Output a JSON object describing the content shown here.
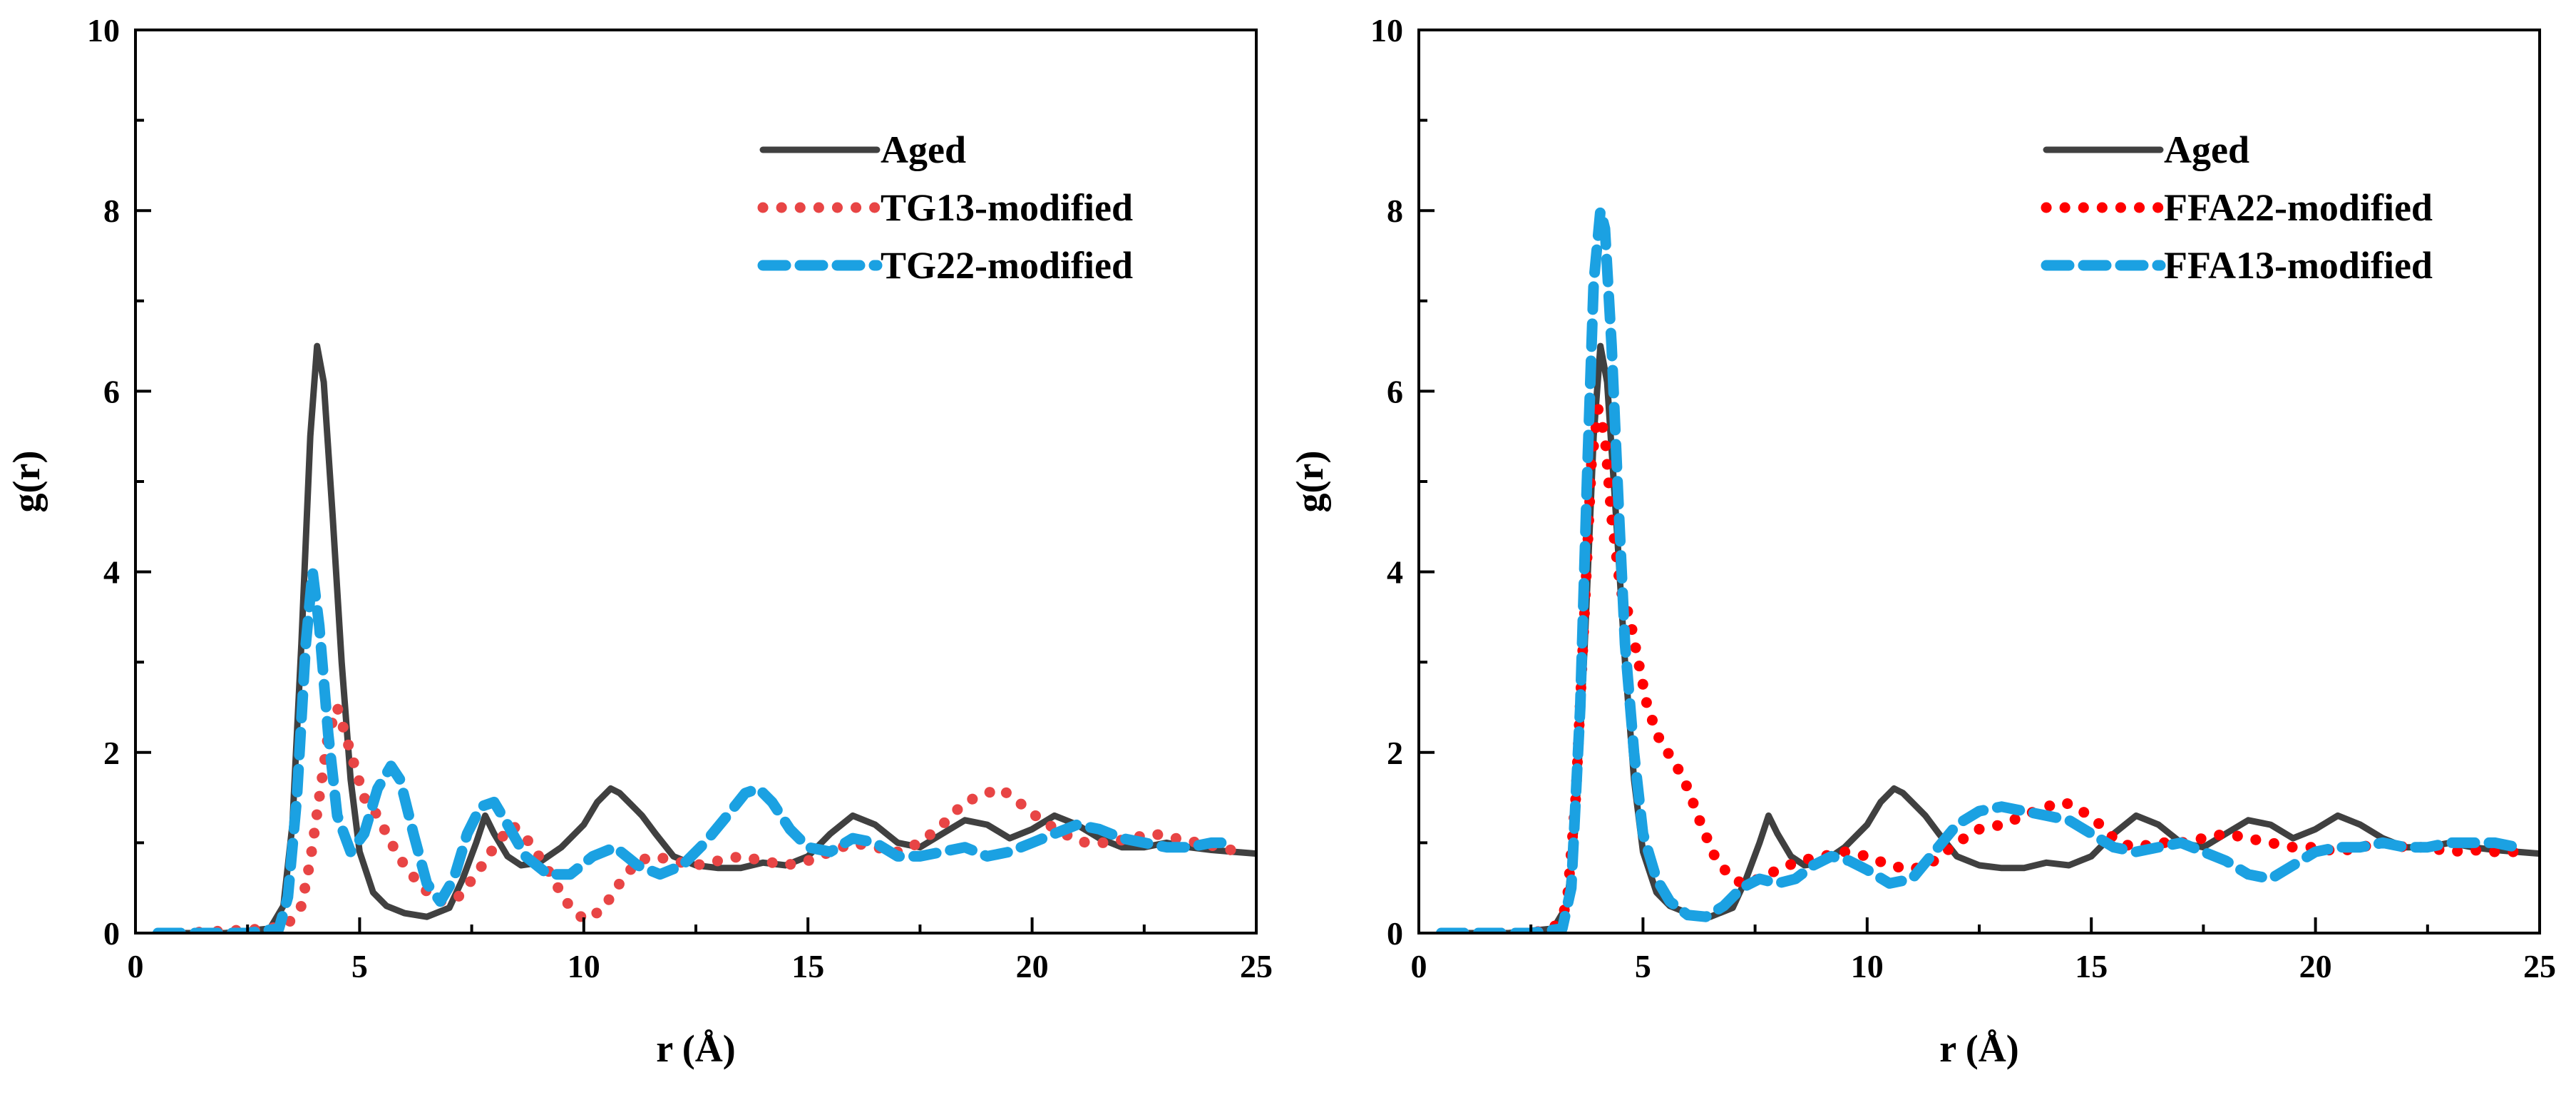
{
  "chart_data": [
    {
      "type": "line",
      "title": "",
      "xlabel": "r (Å)",
      "ylabel": "g(r)",
      "xlim": [
        0,
        25
      ],
      "ylim": [
        0,
        10
      ],
      "xticks": [
        0,
        5,
        10,
        15,
        20,
        25
      ],
      "yticks": [
        0,
        2,
        4,
        6,
        8,
        10
      ],
      "grid": false,
      "legend_position": "top-right",
      "series": [
        {
          "name": "Aged",
          "style": "solid",
          "color": "#404040",
          "x": [
            0.5,
            2.0,
            3.0,
            3.3,
            3.5,
            3.7,
            3.9,
            4.05,
            4.2,
            4.4,
            4.6,
            4.8,
            5.0,
            5.3,
            5.6,
            6.0,
            6.5,
            7.0,
            7.3,
            7.6,
            7.8,
            8.0,
            8.3,
            8.6,
            9.0,
            9.5,
            10.0,
            10.3,
            10.6,
            10.8,
            11.0,
            11.3,
            11.6,
            12.0,
            12.5,
            13.0,
            13.5,
            14.0,
            14.5,
            15.0,
            15.5,
            16.0,
            16.5,
            17.0,
            17.5,
            18.0,
            18.5,
            19.0,
            19.5,
            20.0,
            20.5,
            21.0,
            21.5,
            22.0,
            22.5,
            23.0,
            23.5,
            24.0,
            24.5,
            25.0
          ],
          "y": [
            0,
            0,
            0.05,
            0.3,
            1.2,
            3.2,
            5.5,
            6.5,
            6.1,
            4.6,
            3.0,
            1.7,
            0.9,
            0.45,
            0.3,
            0.22,
            0.18,
            0.28,
            0.6,
            1.0,
            1.3,
            1.1,
            0.85,
            0.75,
            0.78,
            0.95,
            1.2,
            1.45,
            1.6,
            1.55,
            1.45,
            1.3,
            1.1,
            0.85,
            0.75,
            0.72,
            0.72,
            0.78,
            0.75,
            0.85,
            1.1,
            1.3,
            1.2,
            1.0,
            0.95,
            1.1,
            1.25,
            1.2,
            1.05,
            1.15,
            1.3,
            1.2,
            1.05,
            0.95,
            0.95,
            1.0,
            0.95,
            0.92,
            0.9,
            0.88
          ]
        },
        {
          "name": "TG13-modified",
          "style": "dotted",
          "color": "#E84545",
          "x": [
            1.0,
            3.0,
            3.4,
            3.7,
            3.9,
            4.1,
            4.3,
            4.5,
            4.8,
            5.1,
            5.4,
            5.7,
            6.0,
            6.4,
            6.8,
            7.2,
            7.6,
            8.0,
            8.4,
            8.8,
            9.2,
            9.6,
            10.0,
            10.4,
            10.8,
            11.2,
            11.6,
            12.0,
            12.5,
            13.0,
            13.5,
            14.0,
            14.5,
            15.0,
            15.5,
            16.0,
            16.5,
            17.0,
            17.5,
            18.0,
            18.5,
            19.0,
            19.3,
            19.7,
            20.2,
            20.7,
            21.2,
            21.7,
            22.2,
            22.7,
            23.2,
            23.7,
            24.2,
            24.6
          ],
          "y": [
            0,
            0.05,
            0.1,
            0.3,
            0.8,
            1.5,
            2.2,
            2.5,
            2.0,
            1.5,
            1.3,
            1.0,
            0.75,
            0.5,
            0.35,
            0.4,
            0.65,
            0.95,
            1.2,
            1.0,
            0.7,
            0.35,
            0.15,
            0.25,
            0.55,
            0.8,
            0.85,
            0.8,
            0.75,
            0.8,
            0.85,
            0.8,
            0.75,
            0.8,
            0.9,
            1.0,
            0.95,
            0.9,
            1.0,
            1.2,
            1.45,
            1.55,
            1.6,
            1.45,
            1.25,
            1.1,
            1.0,
            1.0,
            1.05,
            1.1,
            1.05,
            1.0,
            0.95,
            0.9
          ]
        },
        {
          "name": "TG22-modified",
          "style": "dashed",
          "color": "#1BA1E2",
          "x": [
            0.5,
            2.5,
            3.2,
            3.4,
            3.6,
            3.8,
            3.95,
            4.1,
            4.3,
            4.5,
            4.8,
            5.1,
            5.4,
            5.7,
            5.9,
            6.2,
            6.5,
            6.8,
            7.1,
            7.4,
            7.7,
            8.0,
            8.3,
            8.7,
            9.2,
            9.7,
            10.2,
            10.7,
            11.2,
            11.7,
            12.2,
            12.7,
            13.2,
            13.6,
            13.9,
            14.2,
            14.6,
            15.0,
            15.5,
            16.0,
            16.5,
            17.0,
            17.5,
            18.0,
            18.5,
            19.0,
            19.5,
            20.0,
            20.5,
            21.0,
            21.5,
            22.0,
            22.5,
            23.0,
            23.5,
            24.0,
            24.5
          ],
          "y": [
            0,
            0,
            0.05,
            0.4,
            1.5,
            3.2,
            4.0,
            3.4,
            2.2,
            1.3,
            0.9,
            1.1,
            1.6,
            1.85,
            1.7,
            1.1,
            0.55,
            0.35,
            0.6,
            1.1,
            1.4,
            1.45,
            1.2,
            0.85,
            0.65,
            0.65,
            0.85,
            0.95,
            0.75,
            0.65,
            0.75,
            1.0,
            1.3,
            1.55,
            1.6,
            1.45,
            1.15,
            0.95,
            0.9,
            1.05,
            1.0,
            0.85,
            0.85,
            0.9,
            0.95,
            0.85,
            0.9,
            1.0,
            1.1,
            1.2,
            1.15,
            1.05,
            1.0,
            0.95,
            0.95,
            1.0,
            1.0
          ]
        }
      ]
    },
    {
      "type": "line",
      "title": "",
      "xlabel": "r (Å)",
      "ylabel": "g(r)",
      "xlim": [
        0,
        25
      ],
      "ylim": [
        0,
        10
      ],
      "xticks": [
        0,
        5,
        10,
        15,
        20,
        25
      ],
      "yticks": [
        0,
        2,
        4,
        6,
        8,
        10
      ],
      "grid": false,
      "legend_position": "top-right",
      "series": [
        {
          "name": "Aged",
          "style": "solid",
          "color": "#404040",
          "x": [
            0.5,
            2.0,
            3.0,
            3.3,
            3.5,
            3.7,
            3.9,
            4.05,
            4.2,
            4.4,
            4.6,
            4.8,
            5.0,
            5.3,
            5.6,
            6.0,
            6.5,
            7.0,
            7.3,
            7.6,
            7.8,
            8.0,
            8.3,
            8.6,
            9.0,
            9.5,
            10.0,
            10.3,
            10.6,
            10.8,
            11.0,
            11.3,
            11.6,
            12.0,
            12.5,
            13.0,
            13.5,
            14.0,
            14.5,
            15.0,
            15.5,
            16.0,
            16.5,
            17.0,
            17.5,
            18.0,
            18.5,
            19.0,
            19.5,
            20.0,
            20.5,
            21.0,
            21.5,
            22.0,
            22.5,
            23.0,
            23.5,
            24.0,
            24.5,
            25.0
          ],
          "y": [
            0,
            0,
            0.05,
            0.3,
            1.2,
            3.2,
            5.5,
            6.5,
            6.1,
            4.6,
            3.0,
            1.7,
            0.9,
            0.45,
            0.3,
            0.22,
            0.18,
            0.28,
            0.6,
            1.0,
            1.3,
            1.1,
            0.85,
            0.75,
            0.78,
            0.95,
            1.2,
            1.45,
            1.6,
            1.55,
            1.45,
            1.3,
            1.1,
            0.85,
            0.75,
            0.72,
            0.72,
            0.78,
            0.75,
            0.85,
            1.1,
            1.3,
            1.2,
            1.0,
            0.95,
            1.1,
            1.25,
            1.2,
            1.05,
            1.15,
            1.3,
            1.2,
            1.05,
            0.95,
            0.95,
            1.0,
            0.95,
            0.92,
            0.9,
            0.88
          ]
        },
        {
          "name": "FFA22-modified",
          "style": "dotted",
          "color": "#FF0000",
          "x": [
            1.0,
            2.5,
            3.0,
            3.3,
            3.5,
            3.7,
            3.85,
            4.0,
            4.15,
            4.3,
            4.5,
            4.7,
            4.9,
            5.1,
            5.4,
            5.7,
            6.0,
            6.3,
            6.6,
            6.9,
            7.2,
            7.6,
            8.0,
            8.5,
            9.0,
            9.5,
            10.0,
            10.5,
            11.0,
            11.5,
            12.0,
            12.5,
            13.0,
            13.5,
            14.0,
            14.4,
            14.8,
            15.2,
            15.6,
            16.0,
            16.5,
            17.0,
            17.5,
            18.0,
            18.5,
            19.0,
            19.5,
            20.0,
            20.5,
            21.0,
            21.5,
            22.0,
            22.5,
            23.0,
            23.5,
            24.0,
            24.5
          ],
          "y": [
            0,
            0,
            0.05,
            0.3,
            1.5,
            3.6,
            5.2,
            5.8,
            5.5,
            4.6,
            3.8,
            3.5,
            3.0,
            2.5,
            2.1,
            1.9,
            1.6,
            1.2,
            0.85,
            0.65,
            0.55,
            0.6,
            0.7,
            0.8,
            0.85,
            0.9,
            0.85,
            0.75,
            0.7,
            0.8,
            1.0,
            1.15,
            1.2,
            1.3,
            1.4,
            1.45,
            1.35,
            1.2,
            1.0,
            0.95,
            1.0,
            1.0,
            1.05,
            1.1,
            1.05,
            1.0,
            0.95,
            0.95,
            0.9,
            0.95,
            1.0,
            0.95,
            0.95,
            0.9,
            0.92,
            0.9,
            0.9
          ]
        },
        {
          "name": "FFA13-modified",
          "style": "dashed",
          "color": "#1BA1E2",
          "x": [
            0.5,
            2.5,
            3.2,
            3.4,
            3.6,
            3.75,
            3.9,
            4.05,
            4.15,
            4.3,
            4.45,
            4.6,
            4.8,
            5.0,
            5.3,
            5.6,
            6.0,
            6.4,
            6.8,
            7.2,
            7.6,
            8.0,
            8.4,
            8.8,
            9.2,
            9.6,
            10.0,
            10.5,
            11.0,
            11.5,
            12.0,
            12.5,
            13.0,
            13.5,
            14.0,
            14.5,
            15.0,
            15.5,
            16.0,
            16.5,
            17.0,
            17.5,
            18.0,
            18.5,
            19.0,
            19.5,
            20.0,
            20.5,
            21.0,
            21.5,
            22.0,
            22.5,
            23.0,
            23.5,
            24.0,
            24.5
          ],
          "y": [
            0,
            0,
            0.05,
            0.5,
            2.5,
            5.0,
            7.2,
            8.0,
            7.8,
            6.5,
            4.8,
            3.2,
            2.0,
            1.1,
            0.6,
            0.35,
            0.2,
            0.18,
            0.3,
            0.5,
            0.6,
            0.55,
            0.6,
            0.75,
            0.85,
            0.8,
            0.7,
            0.55,
            0.6,
            0.9,
            1.2,
            1.35,
            1.4,
            1.35,
            1.3,
            1.25,
            1.1,
            0.95,
            0.9,
            0.95,
            1.0,
            0.9,
            0.8,
            0.65,
            0.6,
            0.75,
            0.9,
            0.95,
            0.95,
            1.0,
            0.95,
            0.95,
            1.0,
            1.0,
            1.0,
            0.95
          ]
        }
      ]
    }
  ]
}
